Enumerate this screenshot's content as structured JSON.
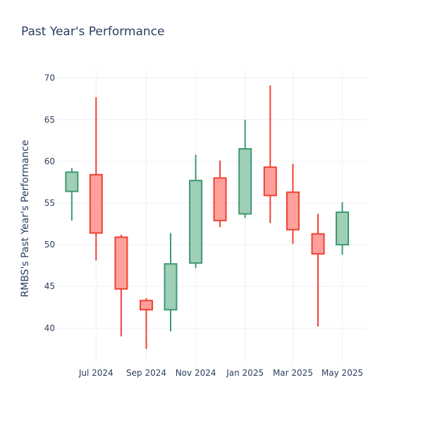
{
  "chart_data": {
    "type": "candlestick",
    "title": "Past Year's Performance",
    "xlabel": "",
    "ylabel": "RMBS's Past Year's Performance",
    "ylim": [
      35.8,
      70.9
    ],
    "yticks": [
      40,
      45,
      50,
      55,
      60,
      65,
      70
    ],
    "xlim": [
      "2024-05-13",
      "2025-05-31"
    ],
    "xticks": [
      {
        "date": "2024-07-01",
        "label": "Jul 2024"
      },
      {
        "date": "2024-09-01",
        "label": "Sep 2024"
      },
      {
        "date": "2024-11-01",
        "label": "Nov 2024"
      },
      {
        "date": "2025-01-01",
        "label": "Jan 2025"
      },
      {
        "date": "2025-03-01",
        "label": "Mar 2025"
      },
      {
        "date": "2025-05-01",
        "label": "May 2025"
      }
    ],
    "grid": true,
    "colors": {
      "increasing_line": "#3d9970",
      "increasing_fill": "#9fcfb7",
      "decreasing_line": "#ef4135",
      "decreasing_fill": "#ffa09a"
    },
    "candles": [
      {
        "date": "2024-06-01",
        "open": 56.4,
        "high": 59.2,
        "low": 52.9,
        "close": 58.7
      },
      {
        "date": "2024-07-01",
        "open": 58.4,
        "high": 67.7,
        "low": 48.1,
        "close": 51.4
      },
      {
        "date": "2024-08-01",
        "open": 50.9,
        "high": 51.2,
        "low": 39.0,
        "close": 44.7
      },
      {
        "date": "2024-09-01",
        "open": 43.3,
        "high": 43.6,
        "low": 37.5,
        "close": 42.2
      },
      {
        "date": "2024-10-01",
        "open": 42.2,
        "high": 51.4,
        "low": 39.6,
        "close": 47.7
      },
      {
        "date": "2024-11-01",
        "open": 47.8,
        "high": 60.8,
        "low": 47.2,
        "close": 57.7
      },
      {
        "date": "2024-12-01",
        "open": 58.0,
        "high": 60.1,
        "low": 52.1,
        "close": 52.9
      },
      {
        "date": "2025-01-01",
        "open": 53.7,
        "high": 65.0,
        "low": 53.2,
        "close": 61.5
      },
      {
        "date": "2025-02-01",
        "open": 59.3,
        "high": 69.1,
        "low": 52.6,
        "close": 55.9
      },
      {
        "date": "2025-03-01",
        "open": 56.3,
        "high": 59.7,
        "low": 50.1,
        "close": 51.8
      },
      {
        "date": "2025-04-01",
        "open": 51.3,
        "high": 53.7,
        "low": 40.2,
        "close": 48.9
      },
      {
        "date": "2025-05-01",
        "open": 50.0,
        "high": 55.1,
        "low": 48.8,
        "close": 53.9
      }
    ]
  }
}
